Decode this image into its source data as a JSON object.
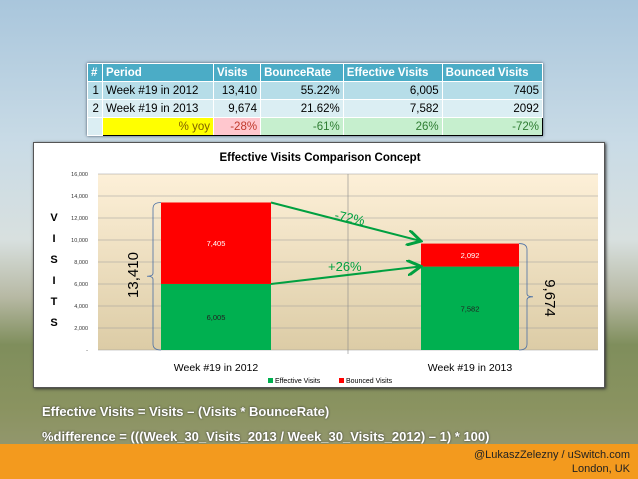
{
  "table": {
    "headers": [
      "#",
      "Period",
      "Visits",
      "BounceRate",
      "Effective Visits",
      "Bounced Visits"
    ],
    "rows": [
      [
        "1",
        "Week #19 in 2012",
        "13,410",
        "55.22%",
        "6,005",
        "7405"
      ],
      [
        "2",
        "Week #19 in 2013",
        "9,674",
        "21.62%",
        "7,582",
        "2092"
      ]
    ],
    "yoy": {
      "label": "% yoy",
      "visits": "-28%",
      "bounce_rate": "-61%",
      "effective": "26%",
      "bounced": "-72%"
    }
  },
  "chart_data": {
    "type": "bar",
    "stacked": true,
    "title": "Effective  Visits Comparison Concept",
    "ylabel": "VISITS",
    "ylabel_letters": [
      "V",
      "I",
      "S",
      "I",
      "T",
      "S"
    ],
    "categories": [
      "Week #19 in 2012",
      "Week #19 in 2013"
    ],
    "series": [
      {
        "name": "Effective Visits",
        "values": [
          6005,
          7582
        ],
        "labels": [
          "6,005",
          "7,582"
        ],
        "color": "#00b050"
      },
      {
        "name": "Bounced Visits",
        "values": [
          7405,
          2092
        ],
        "labels": [
          "7,405",
          "2,092"
        ],
        "color": "#ff0000"
      }
    ],
    "ylim": [
      0,
      16000
    ],
    "yticks": [
      0,
      2000,
      4000,
      6000,
      8000,
      10000,
      12000,
      14000,
      16000
    ],
    "ytick_labels": [
      "-",
      "2,000",
      "4,000",
      "6,000",
      "8,000",
      "10,000",
      "12,000",
      "14,000",
      "16,000"
    ],
    "totals": [
      "13,410",
      "9,674"
    ],
    "annotations": [
      "-72%",
      "+26%"
    ],
    "legend": "bottom"
  },
  "formulas": {
    "line1": "Effective Visits = Visits – (Visits * BounceRate)",
    "line2": "%difference = (((Week_30_Visits_2013 / Week_30_Visits_2012) – 1) * 100)"
  },
  "footer": {
    "line1": "@LukaszZelezny / uSwitch.com",
    "line2": "London, UK"
  }
}
